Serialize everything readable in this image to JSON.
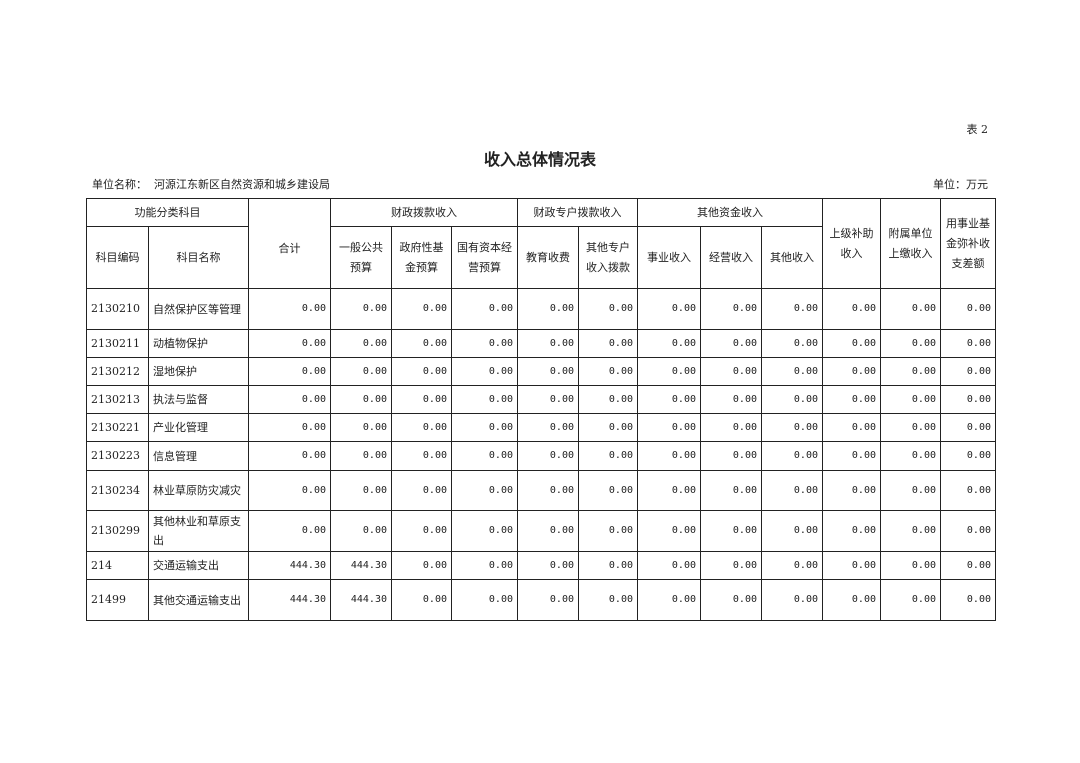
{
  "table_no": "表 2",
  "title": "收入总体情况表",
  "unit_name_label": "单位名称：",
  "unit_name": "河源江东新区自然资源和城乡建设局",
  "unit": "单位：万元",
  "headers": {
    "func_class": "功能分类科目",
    "code": "科目编码",
    "name": "科目名称",
    "total": "合计",
    "fiscal": "财政拨款收入",
    "general": "一般公共预算",
    "gov_fund": "政府性基金预算",
    "state_capital": "国有资本经营预算",
    "special": "财政专户拨款收入",
    "edu_fee": "教育收费",
    "other_special": "其他专户收入拨款",
    "other_funds": "其他资金收入",
    "business": "事业收入",
    "operating": "经营收入",
    "other": "其他收入",
    "superior": "上级补助收入",
    "affiliated": "附属单位上缴收入",
    "fund_make_up": "用事业基金弥补收支差额"
  },
  "rows": [
    {
      "code": "2130210",
      "name": "自然保护区等管理",
      "values": [
        "0.00",
        "0.00",
        "0.00",
        "0.00",
        "0.00",
        "0.00",
        "0.00",
        "0.00",
        "0.00",
        "0.00",
        "0.00",
        "0.00"
      ]
    },
    {
      "code": "2130211",
      "name": "动植物保护",
      "values": [
        "0.00",
        "0.00",
        "0.00",
        "0.00",
        "0.00",
        "0.00",
        "0.00",
        "0.00",
        "0.00",
        "0.00",
        "0.00",
        "0.00"
      ]
    },
    {
      "code": "2130212",
      "name": "湿地保护",
      "values": [
        "0.00",
        "0.00",
        "0.00",
        "0.00",
        "0.00",
        "0.00",
        "0.00",
        "0.00",
        "0.00",
        "0.00",
        "0.00",
        "0.00"
      ]
    },
    {
      "code": "2130213",
      "name": "执法与监督",
      "values": [
        "0.00",
        "0.00",
        "0.00",
        "0.00",
        "0.00",
        "0.00",
        "0.00",
        "0.00",
        "0.00",
        "0.00",
        "0.00",
        "0.00"
      ]
    },
    {
      "code": "2130221",
      "name": "产业化管理",
      "values": [
        "0.00",
        "0.00",
        "0.00",
        "0.00",
        "0.00",
        "0.00",
        "0.00",
        "0.00",
        "0.00",
        "0.00",
        "0.00",
        "0.00"
      ]
    },
    {
      "code": "2130223",
      "name": "信息管理",
      "values": [
        "0.00",
        "0.00",
        "0.00",
        "0.00",
        "0.00",
        "0.00",
        "0.00",
        "0.00",
        "0.00",
        "0.00",
        "0.00",
        "0.00"
      ]
    },
    {
      "code": "2130234",
      "name": "林业草原防灾减灾",
      "values": [
        "0.00",
        "0.00",
        "0.00",
        "0.00",
        "0.00",
        "0.00",
        "0.00",
        "0.00",
        "0.00",
        "0.00",
        "0.00",
        "0.00"
      ]
    },
    {
      "code": "2130299",
      "name": "其他林业和草原支出",
      "values": [
        "0.00",
        "0.00",
        "0.00",
        "0.00",
        "0.00",
        "0.00",
        "0.00",
        "0.00",
        "0.00",
        "0.00",
        "0.00",
        "0.00"
      ]
    },
    {
      "code": "214",
      "name": "交通运输支出",
      "values": [
        "444.30",
        "444.30",
        "0.00",
        "0.00",
        "0.00",
        "0.00",
        "0.00",
        "0.00",
        "0.00",
        "0.00",
        "0.00",
        "0.00"
      ]
    },
    {
      "code": "21499",
      "name": "其他交通运输支出",
      "values": [
        "444.30",
        "444.30",
        "0.00",
        "0.00",
        "0.00",
        "0.00",
        "0.00",
        "0.00",
        "0.00",
        "0.00",
        "0.00",
        "0.00"
      ]
    }
  ]
}
